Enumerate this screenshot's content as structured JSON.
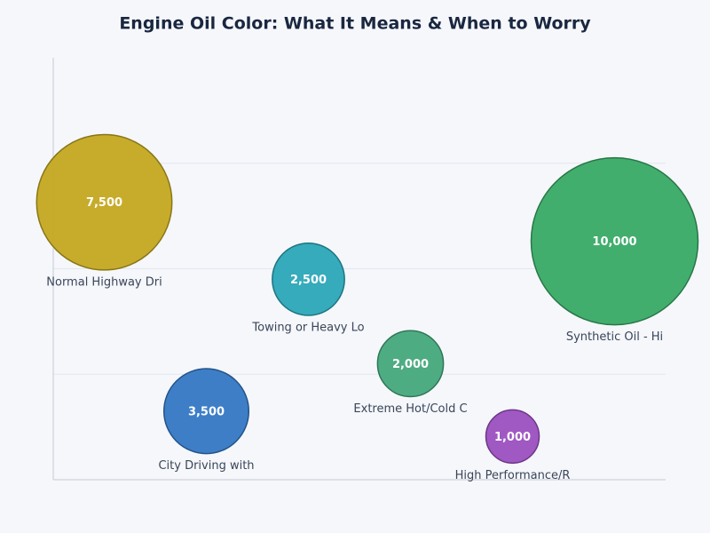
{
  "chart_data": {
    "type": "bubble",
    "title": "Engine Oil Color: What It Means & When to Worry",
    "labels": [
      "Normal Highway Dri",
      "City Driving with",
      "Towing or Heavy Lo",
      "Extreme Hot/Cold C",
      "High Performance/R",
      "Synthetic Oil - Hi"
    ],
    "x": [
      0.5,
      1.5,
      2.5,
      3.5,
      4.5,
      5.5
    ],
    "y": [
      2.63,
      0.65,
      1.9,
      1.1,
      0.41,
      2.26
    ],
    "sizes": [
      7500,
      3500,
      2500,
      2000,
      1000,
      10000
    ],
    "value_labels": [
      "7,500",
      "3,500",
      "2,500",
      "2,000",
      "1,000",
      "10,000"
    ],
    "colors": [
      "#c4a820",
      "#3377c4",
      "#2aa6b8",
      "#45a87c",
      "#9b4fc0",
      "#38aa65"
    ],
    "xlim": [
      0,
      6
    ],
    "ylim": [
      0,
      4
    ],
    "ygrid": [
      1,
      2,
      3
    ]
  }
}
